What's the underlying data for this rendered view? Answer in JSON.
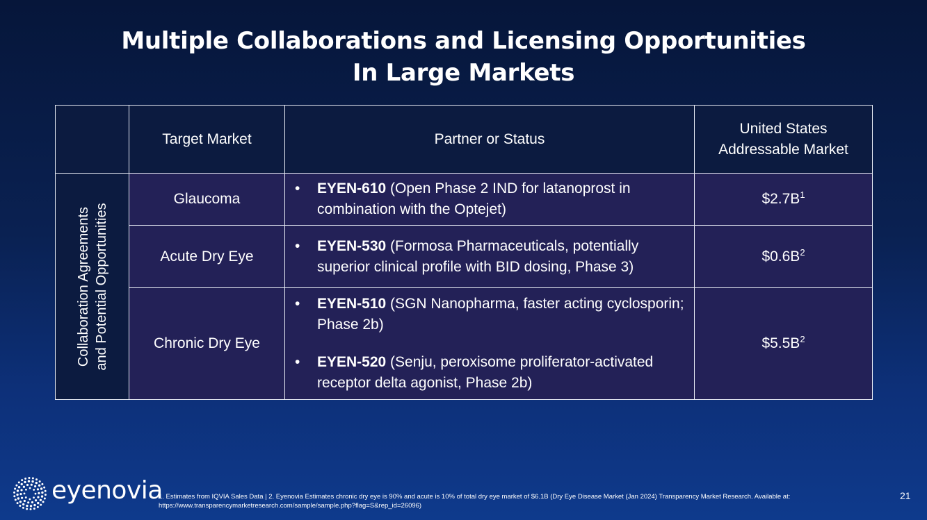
{
  "title": {
    "line1": "Multiple Collaborations and Licensing Opportunities",
    "line2": "In Large Markets"
  },
  "table": {
    "headers": {
      "target_market": "Target Market",
      "partner_status": "Partner or Status",
      "us_market_line1": "United States",
      "us_market_line2": "Addressable Market"
    },
    "side_label": {
      "line1": "Collaboration Agreements",
      "line2": "and Potential Opportunities"
    },
    "rows": [
      {
        "market": "Glaucoma",
        "bullets": [
          {
            "code": "EYEN-610",
            "text": " (Open Phase 2 IND for latanoprost in combination with the Optejet)"
          }
        ],
        "value": "$2.7B",
        "footnote_ref": "1"
      },
      {
        "market": "Acute Dry Eye",
        "bullets": [
          {
            "code": "EYEN-530",
            "text": " (Formosa Pharmaceuticals, potentially superior clinical profile with BID dosing, Phase 3)"
          }
        ],
        "value": "$0.6B",
        "footnote_ref": "2"
      },
      {
        "market": "Chronic Dry Eye",
        "bullets": [
          {
            "code": "EYEN-510",
            "text": " (SGN Nanopharma, faster acting cyclosporin; Phase 2b)"
          },
          {
            "code": "EYEN-520",
            "text": " (Senju, peroxisome proliferator-activated receptor delta agonist, Phase 2b)"
          }
        ],
        "value": "$5.5B",
        "footnote_ref": "2"
      }
    ]
  },
  "bullet_glyph": "•",
  "logo": {
    "text": "eyenovia",
    "icon": "dotted-sunburst-logo-icon"
  },
  "footnote": "1. Estimates from IQVIA Sales Data | 2. Eyenovia Estimates chronic dry eye is 90% and acute is 10% of total dry eye market of $6.1B (Dry Eye Disease Market (Jan 2024) Transparency Market Research. Available at: https://www.transparencymarketresearch.com/sample/sample.php?flag=S&rep_id=26096)",
  "page_number": "21",
  "colors": {
    "background_top": "#06163a",
    "background_bottom": "#0e3a8c",
    "header_cell": "#0c1b40",
    "body_cell": "#232157",
    "border": "#e8ecf5"
  }
}
